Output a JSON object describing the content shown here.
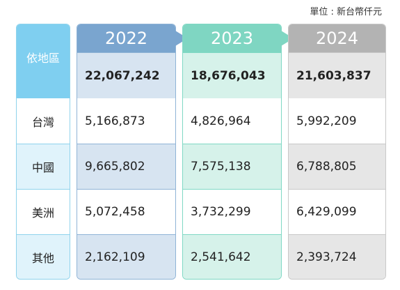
{
  "unit_label": "單位 : 新台幣仟元",
  "region_header": "依地區",
  "rows": [
    {
      "label": "台灣"
    },
    {
      "label": "中國"
    },
    {
      "label": "美洲"
    },
    {
      "label": "其他"
    }
  ],
  "years": [
    {
      "year": "2022",
      "total": "22,067,242",
      "values": [
        "5,166,873",
        "9,665,802",
        "5,072,458",
        "2,162,109"
      ],
      "color": "#7aa5cf"
    },
    {
      "year": "2023",
      "total": "18,676,043",
      "values": [
        "4,826,964",
        "7,575,138",
        "3,732,299",
        "2,541,642"
      ],
      "color": "#7fd6c2"
    },
    {
      "year": "2024",
      "total": "21,603,837",
      "values": [
        "5,992,209",
        "6,788,805",
        "6,429,099",
        "2,393,724"
      ],
      "color": "#b3b3b3"
    }
  ]
}
